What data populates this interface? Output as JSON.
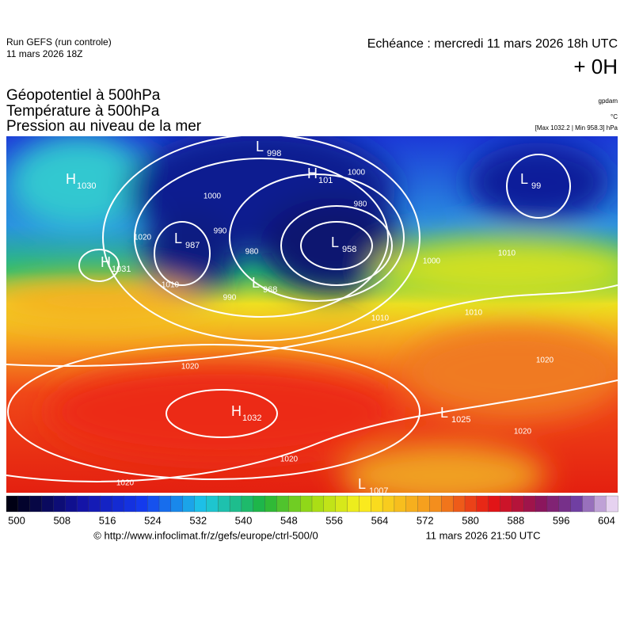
{
  "header": {
    "run": "Run GEFS (run controle)",
    "run_date": "11 mars 2026 18Z",
    "echeance": "Echéance : mercredi 11 mars 2026 18h UTC",
    "lead": "+ 0H"
  },
  "titles": [
    "Géopotentiel à 500hPa",
    "Température à 500hPa",
    "Pression au niveau de la mer"
  ],
  "units": {
    "geopotential": "gpdam",
    "temperature": "°C",
    "pressure": "[Max 1032.2 | Min 958.3] hPa"
  },
  "centers": [
    {
      "letter": "H",
      "value": "1030"
    },
    {
      "letter": "H",
      "value": "1031"
    },
    {
      "letter": "H",
      "value": "101"
    },
    {
      "letter": "L",
      "value": "998"
    },
    {
      "letter": "L",
      "value": "987"
    },
    {
      "letter": "L",
      "value": "958"
    },
    {
      "letter": "L",
      "value": "968"
    },
    {
      "letter": "L",
      "value": "99"
    },
    {
      "letter": "H",
      "value": "1032"
    },
    {
      "letter": "L",
      "value": "1025"
    },
    {
      "letter": "L",
      "value": "1007"
    }
  ],
  "isobar_labels": [
    "1000",
    "980",
    "990",
    "1010",
    "1020",
    "1000",
    "980",
    "990",
    "1000",
    "1010",
    "1010",
    "1020",
    "1020",
    "1020",
    "1010",
    "1020",
    "1020"
  ],
  "colorbar_ticks": [
    500,
    508,
    516,
    524,
    532,
    540,
    548,
    556,
    564,
    572,
    580,
    588,
    596,
    604
  ],
  "footer": {
    "source": "© http://www.infoclimat.fr/z/gefs/europe/ctrl-500/0",
    "generated": "11 mars 2026 21:50 UTC"
  }
}
